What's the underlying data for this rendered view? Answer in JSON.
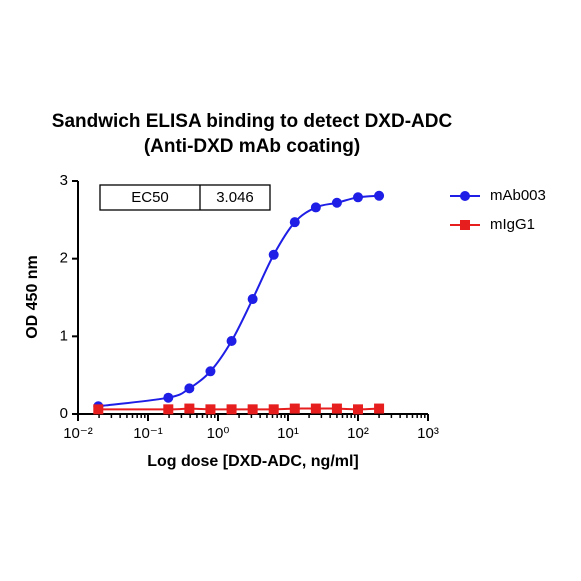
{
  "chart_data": {
    "type": "scatter",
    "title": "Sandwich ELISA binding to detect DXD-ADC",
    "subtitle": "(Anti-DXD mAb coating)",
    "x_label": "Log dose [DXD-ADC, ng/ml]",
    "y_label": "OD 450 nm",
    "x_scale": "log",
    "x": [
      0.0195,
      0.195,
      0.39,
      0.78,
      1.5625,
      3.125,
      6.25,
      12.5,
      25,
      50,
      100,
      200
    ],
    "series": [
      {
        "name": "mAb003",
        "color": "#1e1ee6",
        "marker": "circle",
        "values": [
          0.1,
          0.21,
          0.33,
          0.55,
          0.94,
          1.48,
          2.05,
          2.47,
          2.66,
          2.72,
          2.79,
          2.81
        ]
      },
      {
        "name": "mIgG1",
        "color": "#e61e1e",
        "marker": "square",
        "values": [
          0.06,
          0.06,
          0.07,
          0.06,
          0.06,
          0.06,
          0.06,
          0.07,
          0.07,
          0.07,
          0.06,
          0.07
        ]
      }
    ],
    "xlim": [
      0.01,
      1000
    ],
    "xticks": [
      {
        "value": 0.01,
        "label": "10⁻²"
      },
      {
        "value": 0.1,
        "label": "10⁻¹"
      },
      {
        "value": 1,
        "label": "10⁰"
      },
      {
        "value": 10,
        "label": "10¹"
      },
      {
        "value": 100,
        "label": "10²"
      },
      {
        "value": 1000,
        "label": "10³"
      }
    ],
    "ylim": [
      0,
      3
    ],
    "yticks": [
      0,
      1,
      2,
      3
    ],
    "legend": "right",
    "ec50_label": "EC50",
    "ec50": 3.046
  }
}
